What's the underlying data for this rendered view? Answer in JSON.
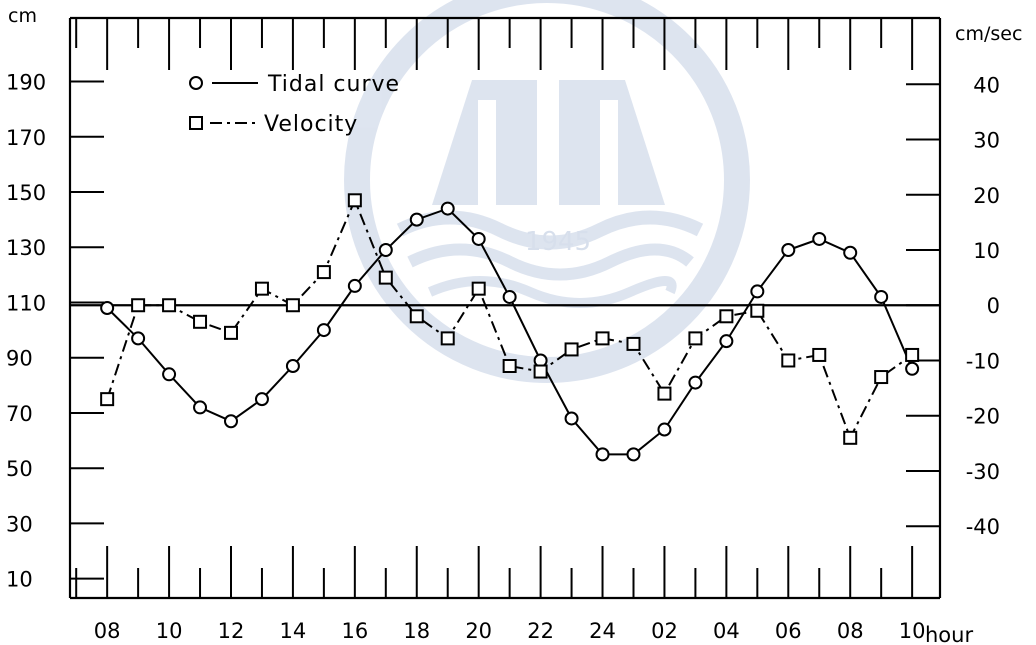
{
  "chart_data": {
    "type": "line",
    "left_unit": "cm",
    "right_unit": "cm/sec",
    "x_unit": "hour",
    "x_tick_labels": [
      "08",
      "10",
      "12",
      "14",
      "16",
      "18",
      "20",
      "22",
      "24",
      "02",
      "04",
      "06",
      "08",
      "10"
    ],
    "y_left_ticks": [
      10,
      30,
      50,
      70,
      90,
      110,
      130,
      150,
      170,
      190
    ],
    "y_right_ticks": [
      40,
      30,
      20,
      10,
      0,
      -10,
      -20,
      -30,
      -40
    ],
    "y_left_range": [
      3,
      213
    ],
    "y_right_range": [
      -53,
      52
    ],
    "x_range": [
      6.8,
      34.9
    ],
    "reference_line": {
      "y_right": 0
    },
    "grid": false,
    "legend_position": "top-left",
    "series": [
      {
        "name": "Tidal curve",
        "marker": "circle",
        "line_style": "solid",
        "axis": "left",
        "x": [
          8,
          9,
          10,
          11,
          12,
          13,
          14,
          15,
          16,
          17,
          18,
          19,
          20,
          21,
          22,
          23,
          24,
          25,
          26,
          27,
          28,
          29,
          30,
          31,
          32,
          33,
          34
        ],
        "y": [
          108,
          97,
          84,
          72,
          67,
          75,
          87,
          100,
          116,
          129,
          140,
          144,
          133,
          112,
          89,
          68,
          55,
          55,
          64,
          81,
          96,
          114,
          129,
          133,
          128,
          112,
          86
        ]
      },
      {
        "name": "Velocity",
        "marker": "square",
        "line_style": "dashdot",
        "axis": "right",
        "x": [
          8,
          9,
          10,
          11,
          12,
          13,
          14,
          15,
          16,
          17,
          18,
          19,
          20,
          21,
          22,
          23,
          24,
          25,
          26,
          27,
          28,
          29,
          30,
          31,
          32,
          33,
          34
        ],
        "y": [
          -17,
          0,
          0,
          -3,
          -5,
          3,
          0,
          6,
          19,
          5,
          -2,
          -6,
          3,
          -11,
          -12,
          -8,
          -6,
          -7,
          -16,
          -6,
          -2,
          -1,
          -10,
          -9,
          -24,
          -13,
          -9
        ]
      }
    ]
  },
  "watermark": {
    "year": "1945"
  }
}
